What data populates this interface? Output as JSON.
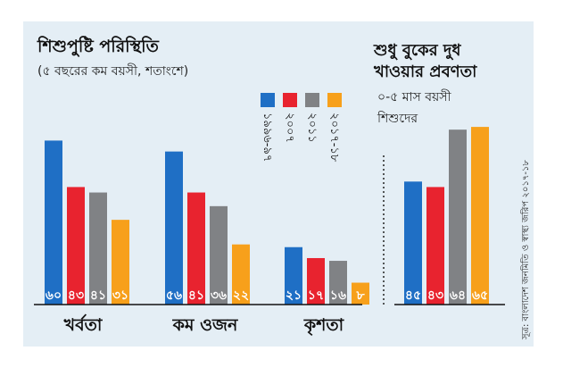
{
  "colors": {
    "panel_bg": "#e4eef5",
    "series": [
      "#1f6fc5",
      "#e8232f",
      "#808285",
      "#f7a01b"
    ]
  },
  "left": {
    "title": "শিশুপুষ্টি পরিস্থিতি",
    "subtitle": "(৫ বছরের কম বয়সী, শতাংশে)"
  },
  "right": {
    "title_line1": "শুধু বুকের দুধ",
    "title_line2": "খাওয়ার প্রবণতা",
    "subtitle_line1": "০-৫ মাস বয়সী",
    "subtitle_line2": "শিশুদের"
  },
  "legend": [
    "১৯৯৬-৯৭",
    "২০০৭",
    "২০১১",
    "২০১৭-১৮"
  ],
  "source": "সূত্র: বাংলাদেশ জনমিতি ও স্বাস্থ্য জরিপ ২০১৭-১৮",
  "chart_data": [
    {
      "type": "bar",
      "title": "শিশুপুষ্টি পরিস্থিতি",
      "subtitle": "(৫ বছরের কম বয়সী, শতাংশে)",
      "categories": [
        "খর্বতা",
        "কম ওজন",
        "কৃশতা"
      ],
      "series": [
        {
          "name": "১৯৯৬-৯৭",
          "values": [
            60,
            56,
            21
          ],
          "labels": [
            "৬০",
            "৫৬",
            "২১"
          ]
        },
        {
          "name": "২০০৭",
          "values": [
            43,
            41,
            17
          ],
          "labels": [
            "৪৩",
            "৪১",
            "১৭"
          ]
        },
        {
          "name": "২০১১",
          "values": [
            41,
            36,
            16
          ],
          "labels": [
            "৪১",
            "৩৬",
            "১৬"
          ]
        },
        {
          "name": "২০১৭-১৮",
          "values": [
            31,
            22,
            8
          ],
          "labels": [
            "৩১",
            "২২",
            "৮"
          ]
        }
      ],
      "legend": "top-right, vertical labels",
      "grid": false
    },
    {
      "type": "bar",
      "title": "শুধু বুকের দুধ খাওয়ার প্রবণতা",
      "subtitle": "০-৫ মাস বয়সী শিশুদের",
      "categories": [
        "১৯৯৬-৯৭",
        "২০০৭",
        "২০১১",
        "২০১৭-১৮"
      ],
      "series": [
        {
          "name": "",
          "values": [
            45,
            43,
            64,
            65
          ],
          "labels": [
            "৪৫",
            "৪৩",
            "৬৪",
            "৬৫"
          ]
        }
      ],
      "grid": false
    }
  ]
}
